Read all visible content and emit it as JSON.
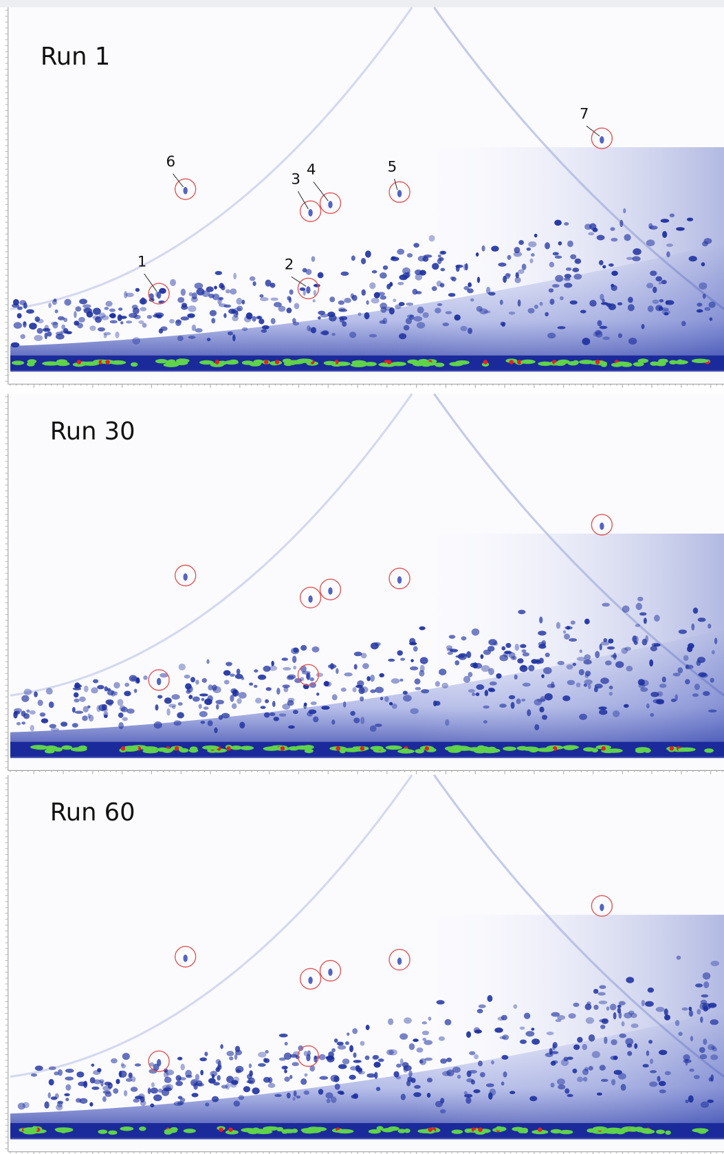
{
  "panels": [
    {
      "title": "Run 1",
      "peak_labels": [
        "1",
        "2",
        "3",
        "4",
        "5",
        "6",
        "7"
      ]
    },
    {
      "title": "Run 30"
    },
    {
      "title": "Run 60"
    }
  ]
}
